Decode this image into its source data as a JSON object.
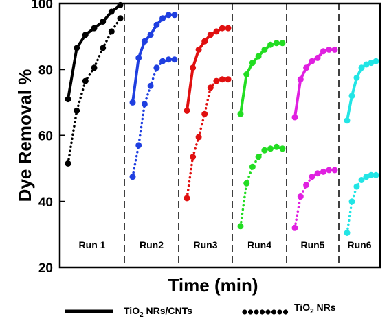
{
  "chart_data": {
    "type": "line",
    "xlabel": "Time (min)",
    "ylabel": "Dye Removal %",
    "ylim": [
      20,
      100
    ],
    "yticks": [
      20,
      40,
      60,
      80,
      100
    ],
    "runs": [
      {
        "label": "Run 1",
        "color": "#000000",
        "tio2_cnts": [
          71,
          86.5,
          90.5,
          92.5,
          94.5,
          97.5,
          99.5
        ],
        "tio2": [
          51.5,
          67.5,
          76.5,
          80.5,
          86.5,
          91.5,
          95.5
        ]
      },
      {
        "label": "Run2",
        "color": "#1f3fe0",
        "tio2_cnts": [
          70,
          83.5,
          88.5,
          90.5,
          93.5,
          95.5,
          96.5,
          96.5
        ],
        "tio2": [
          47.5,
          57,
          69.5,
          75,
          80.5,
          82.5,
          83,
          83
        ]
      },
      {
        "label": "Run3",
        "color": "#e01010",
        "tio2_cnts": [
          67.5,
          80.5,
          86,
          88.5,
          90.5,
          91.5,
          92.5,
          92.5
        ],
        "tio2": [
          41,
          53.5,
          59.5,
          66.5,
          74.5,
          76.5,
          77,
          77
        ]
      },
      {
        "label": "Run4",
        "color": "#22dd22",
        "tio2_cnts": [
          66.5,
          78.5,
          82,
          84,
          86,
          87.5,
          88,
          88
        ],
        "tio2": [
          32.5,
          45.5,
          50.5,
          53.5,
          55.5,
          56,
          56.5,
          56
        ]
      },
      {
        "label": "Run5",
        "color": "#e020e0",
        "tio2_cnts": [
          65.5,
          77,
          80.5,
          82.5,
          83.5,
          85.5,
          86,
          86
        ],
        "tio2": [
          32,
          41.5,
          45,
          47.5,
          48.5,
          49,
          49.5,
          49.5
        ]
      },
      {
        "label": "Run6",
        "color": "#22e5e5",
        "tio2_cnts": [
          64.5,
          72,
          77.5,
          80.5,
          81.5,
          82,
          82.5
        ],
        "tio2": [
          30.5,
          40,
          44.5,
          46.5,
          47.5,
          48,
          48
        ]
      }
    ],
    "series_names": {
      "tio2_cnts": "TiO2 NRs/CNTs",
      "tio2": "TiO2 NRs"
    },
    "legend_placement": "bottom",
    "grid": false
  },
  "legend": {
    "solid": {
      "prefix": "TiO",
      "sub": "2",
      "suffix": " NRs/CNTs"
    },
    "dotted": {
      "prefix": "TiO",
      "sub": "2",
      "suffix": " NRs"
    }
  }
}
